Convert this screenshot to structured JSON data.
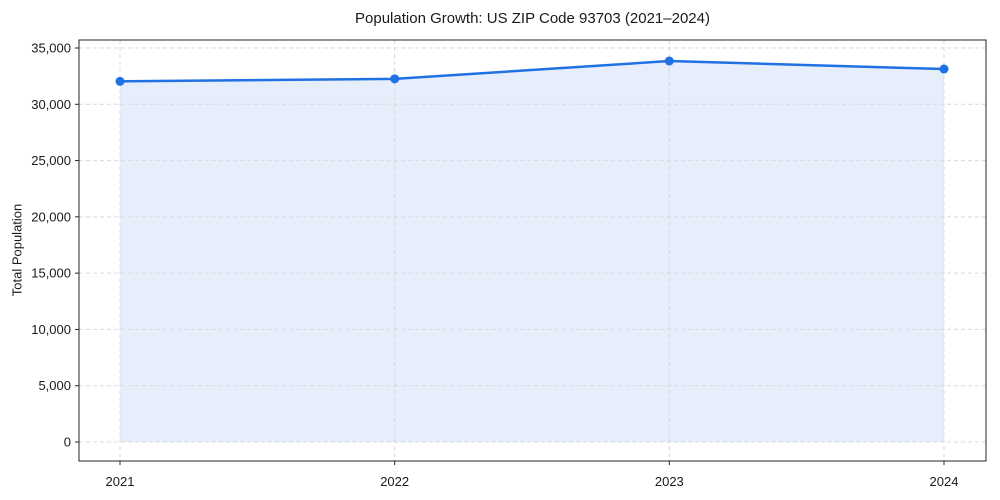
{
  "chart_data": {
    "type": "line",
    "title": "Population Growth: US ZIP Code 93703 (2021–2024)",
    "xlabel": "",
    "ylabel": "Total Population",
    "x": [
      2021,
      2022,
      2023,
      2024
    ],
    "xtick_labels": [
      "2021",
      "2022",
      "2023",
      "2024"
    ],
    "series": [
      {
        "name": "Total Population",
        "values": [
          32040,
          32260,
          33840,
          33130
        ],
        "marker": "circle",
        "area_fill": true
      }
    ],
    "ylim": [
      0,
      35000
    ],
    "yticks": [
      0,
      5000,
      10000,
      15000,
      20000,
      25000,
      30000,
      35000
    ],
    "ytick_labels": [
      "0",
      "5,000",
      "10,000",
      "15,000",
      "20,000",
      "25,000",
      "30,000",
      "35,000"
    ],
    "grid": "dashed-both-axes",
    "legend": "none",
    "colors": {
      "line": "#2071e3",
      "marker": "#2071e3",
      "fill": "#e7eefb",
      "grid": "#d9d9d9",
      "spine": "#262626",
      "text": "#1a1a1a",
      "background": "#ffffff"
    }
  }
}
